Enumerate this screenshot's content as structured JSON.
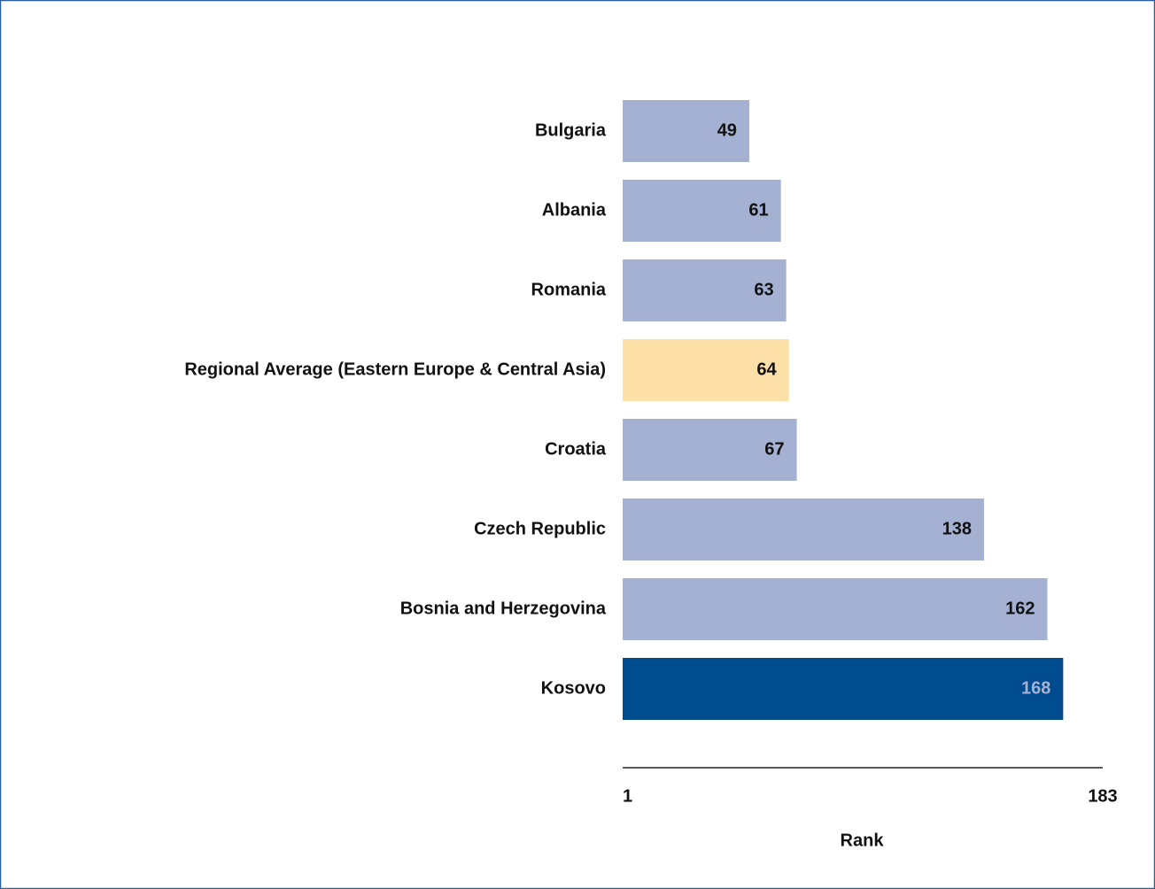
{
  "chart_data": {
    "type": "bar",
    "orientation": "horizontal",
    "categories": [
      "Bulgaria",
      "Albania",
      "Romania",
      "Regional Average (Eastern Europe & Central Asia)",
      "Croatia",
      "Czech Republic",
      "Bosnia and Herzegovina",
      "Kosovo"
    ],
    "values": [
      49,
      61,
      63,
      64,
      67,
      138,
      162,
      168
    ],
    "colors": [
      "#a5b1d3",
      "#a5b1d3",
      "#a5b1d3",
      "#fde0a8",
      "#a5b1d3",
      "#a5b1d3",
      "#a5b1d3",
      "#004b8d"
    ],
    "xlabel": "Rank",
    "xlim": [
      1,
      183
    ],
    "xticks": [
      1,
      183
    ]
  }
}
